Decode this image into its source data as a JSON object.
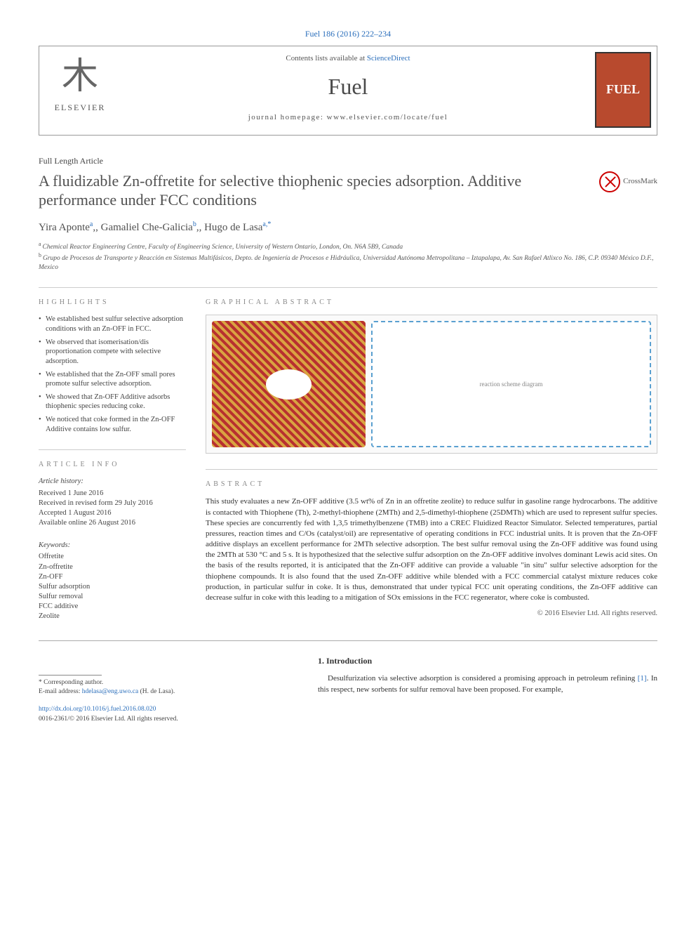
{
  "citation": "Fuel 186 (2016) 222–234",
  "header": {
    "contents_prefix": "Contents lists available at ",
    "contents_link": "ScienceDirect",
    "journal_name": "Fuel",
    "homepage_prefix": "journal homepage: ",
    "homepage_url": "www.elsevier.com/locate/fuel",
    "publisher": "ELSEVIER",
    "cover_label": "FUEL"
  },
  "article_type": "Full Length Article",
  "title": "A fluidizable Zn-offretite for selective thiophenic species adsorption. Additive performance under FCC conditions",
  "crossmark": "CrossMark",
  "authors_html": "Yira Aponte|a|, Gamaliel Che-Galicia|b|, Hugo de Lasa|a,*",
  "affiliations": [
    {
      "sup": "a",
      "text": "Chemical Reactor Engineering Centre, Faculty of Engineering Science, University of Western Ontario, London, On. N6A 5B9, Canada"
    },
    {
      "sup": "b",
      "text": "Grupo de Procesos de Transporte y Reacción en Sistemas Multifásicos, Depto. de Ingeniería de Procesos e Hidráulica, Universidad Autónoma Metropolitana – Iztapalapa, Av. San Rafael Atlixco No. 186, C.P. 09340 México D.F., Mexico"
    }
  ],
  "headings": {
    "highlights": "HIGHLIGHTS",
    "graphical_abstract": "GRAPHICAL ABSTRACT",
    "article_info": "ARTICLE INFO",
    "abstract": "ABSTRACT"
  },
  "highlights": [
    "We established best sulfur selective adsorption conditions with an Zn-OFF in FCC.",
    "We observed that isomerisation/dis proportionation compete with selective adsorption.",
    "We established that the Zn-OFF small pores promote sulfur selective adsorption.",
    "We showed that Zn-OFF Additive adsorbs thiophenic species reducing coke.",
    "We noticed that coke formed in the Zn-OFF Additive contains low sulfur."
  ],
  "graphical_abstract_placeholder": "reaction scheme diagram",
  "article_info": {
    "history_head": "Article history:",
    "received": "Received 1 June 2016",
    "revised": "Received in revised form 29 July 2016",
    "accepted": "Accepted 1 August 2016",
    "online": "Available online 26 August 2016",
    "keywords_head": "Keywords:",
    "keywords": [
      "Offretite",
      "Zn-offretite",
      "Zn-OFF",
      "Sulfur adsorption",
      "Sulfur removal",
      "FCC additive",
      "Zeolite"
    ]
  },
  "abstract": "This study evaluates a new Zn-OFF additive (3.5 wt% of Zn in an offretite zeolite) to reduce sulfur in gasoline range hydrocarbons. The additive is contacted with Thiophene (Th), 2-methyl-thiophene (2MTh) and 2,5-dimethyl-thiophene (25DMTh) which are used to represent sulfur species. These species are concurrently fed with 1,3,5 trimethylbenzene (TMB) into a CREC Fluidized Reactor Simulator. Selected temperatures, partial pressures, reaction times and C/Os (catalyst/oil) are representative of operating conditions in FCC industrial units. It is proven that the Zn-OFF additive displays an excellent performance for 2MTh selective adsorption. The best sulfur removal using the Zn-OFF additive was found using the 2MTh at 530 °C and 5 s. It is hypothesized that the selective sulfur adsorption on the Zn-OFF additive involves dominant Lewis acid sites. On the basis of the results reported, it is anticipated that the Zn-OFF additive can provide a valuable \"in situ\" sulfur selective adsorption for the thiophene compounds. It is also found that the used Zn-OFF additive while blended with a FCC commercial catalyst mixture reduces coke production, in particular sulfur in coke. It is thus, demonstrated that under typical FCC unit operating conditions, the Zn-OFF additive can decrease sulfur in coke with this leading to a mitigation of SOx emissions in the FCC regenerator, where coke is combusted.",
  "copyright": "© 2016 Elsevier Ltd. All rights reserved.",
  "introduction": {
    "heading": "1. Introduction",
    "text_pre": "Desulfurization via selective adsorption is considered a promising approach in petroleum refining ",
    "ref": "[1]",
    "text_post": ". In this respect, new sorbents for sulfur removal have been proposed. For example,"
  },
  "footnote": {
    "corresponding": "* Corresponding author.",
    "email_label": "E-mail address: ",
    "email": "hdelasa@eng.uwo.ca",
    "email_suffix": " (H. de Lasa)."
  },
  "footer": {
    "doi": "http://dx.doi.org/10.1016/j.fuel.2016.08.020",
    "issn_line": "0016-2361/© 2016 Elsevier Ltd. All rights reserved."
  },
  "colors": {
    "link": "#2a6ebb",
    "text": "#333333",
    "heading_gray": "#888888",
    "cover_bg": "#b84a2e"
  }
}
